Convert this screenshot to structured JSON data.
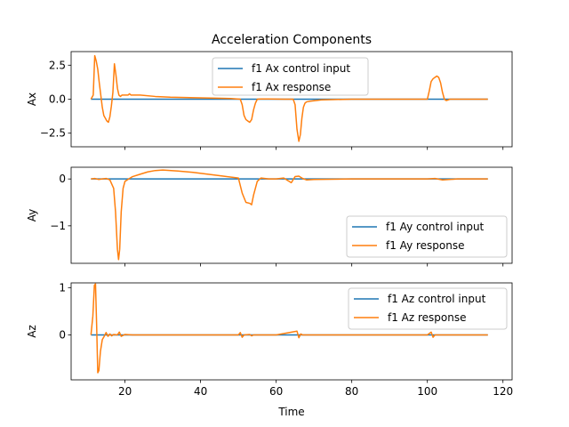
{
  "figure": {
    "title": "Acceleration Components",
    "xlabel": "Time"
  },
  "colors": {
    "control": "#1f77b4",
    "response": "#ff7f0e"
  },
  "chart_data": [
    {
      "type": "line",
      "ylabel": "Ax",
      "xlim": [
        11,
        116
      ],
      "ylim": [
        -3.5,
        3.5
      ],
      "yticks": [
        2.5,
        0.0,
        -2.5
      ],
      "ytick_labels": [
        "2.5",
        "0.0",
        "−2.5"
      ],
      "xticks": [
        20,
        40,
        60,
        80,
        100,
        120
      ],
      "legend": "top-center",
      "series": [
        {
          "name": "f1 Ax control input",
          "role": "control",
          "x": [
            11,
            116
          ],
          "y": [
            0,
            0
          ]
        },
        {
          "name": "f1 Ax response",
          "role": "response",
          "x": [
            11,
            11.6,
            12.0,
            12.4,
            12.8,
            13.2,
            13.6,
            14.0,
            14.4,
            14.8,
            15.2,
            15.6,
            16.0,
            16.4,
            16.8,
            17.2,
            17.6,
            18.0,
            18.4,
            18.8,
            19.2,
            19.6,
            20.0,
            20.4,
            20.8,
            21.2,
            21.6,
            22.4,
            24,
            28,
            32,
            40,
            48,
            50.5,
            51.0,
            51.5,
            52.0,
            52.5,
            53.0,
            53.5,
            54.0,
            54.5,
            55.0,
            56,
            58,
            62,
            64.5,
            65.0,
            65.5,
            66.0,
            66.4,
            66.8,
            67.2,
            67.6,
            68.0,
            69,
            72,
            80,
            100,
            100.5,
            101.0,
            101.5,
            102.0,
            102.5,
            103.0,
            103.5,
            104.0,
            104.5,
            105.0,
            106,
            108,
            116
          ],
          "y": [
            0,
            0.3,
            3.2,
            2.8,
            2.2,
            1.2,
            0.3,
            -0.6,
            -1.2,
            -1.4,
            -1.6,
            -1.7,
            -1.3,
            -0.5,
            0.5,
            2.6,
            1.8,
            0.8,
            0.3,
            0.2,
            0.3,
            0.3,
            0.3,
            0.3,
            0.3,
            0.4,
            0.3,
            0.3,
            0.3,
            0.2,
            0.15,
            0.1,
            0.05,
            0,
            -0.4,
            -1.2,
            -1.5,
            -1.6,
            -1.7,
            -1.5,
            -0.8,
            -0.3,
            0,
            0.02,
            0.02,
            0,
            0,
            -0.4,
            -2.2,
            -3.1,
            -2.6,
            -1.4,
            -0.6,
            -0.3,
            -0.2,
            -0.15,
            -0.05,
            0,
            0,
            0.6,
            1.3,
            1.5,
            1.6,
            1.7,
            1.6,
            1.2,
            0.5,
            0,
            -0.1,
            0,
            0,
            0
          ]
        }
      ]
    },
    {
      "type": "line",
      "ylabel": "Ay",
      "xlim": [
        11,
        116
      ],
      "ylim": [
        -1.8,
        0.25
      ],
      "yticks": [
        0,
        -1
      ],
      "ytick_labels": [
        "0",
        "−1"
      ],
      "xticks": [
        20,
        40,
        60,
        80,
        100,
        120
      ],
      "legend": "bottom-right",
      "series": [
        {
          "name": "f1 Ay control input",
          "role": "control",
          "x": [
            11,
            116
          ],
          "y": [
            0,
            0
          ]
        },
        {
          "name": "f1 Ay response",
          "role": "response",
          "x": [
            11,
            12,
            13,
            14,
            15,
            16,
            17,
            17.5,
            18.0,
            18.3,
            18.6,
            19.0,
            19.5,
            20,
            21,
            22,
            24,
            26,
            28,
            30,
            34,
            38,
            42,
            46,
            50,
            51,
            52,
            53,
            53.5,
            54,
            55,
            56,
            58,
            60,
            62,
            64,
            65,
            66,
            67,
            68,
            70,
            80,
            90,
            100,
            102,
            104,
            108,
            116
          ],
          "y": [
            0,
            0.01,
            -0.01,
            0,
            0.01,
            -0.02,
            -0.2,
            -0.7,
            -1.5,
            -1.72,
            -1.5,
            -0.7,
            -0.2,
            -0.05,
            0,
            0.05,
            0.1,
            0.15,
            0.18,
            0.19,
            0.17,
            0.14,
            0.1,
            0.06,
            0.02,
            -0.3,
            -0.5,
            -0.52,
            -0.55,
            -0.35,
            -0.05,
            0.02,
            0,
            0,
            0.02,
            -0.08,
            0.05,
            0.06,
            0.01,
            -0.02,
            -0.01,
            0,
            0,
            0,
            0.01,
            -0.02,
            0,
            0
          ]
        }
      ]
    },
    {
      "type": "line",
      "ylabel": "Az",
      "xlim": [
        11,
        116
      ],
      "ylim": [
        -0.95,
        1.1
      ],
      "yticks": [
        1,
        0
      ],
      "ytick_labels": [
        "1",
        "0"
      ],
      "xticks": [
        20,
        40,
        60,
        80,
        100,
        120
      ],
      "xtick_labels": [
        "20",
        "40",
        "60",
        "80",
        "100",
        "120"
      ],
      "legend": "top-right",
      "series": [
        {
          "name": "f1 Az control input",
          "role": "control",
          "x": [
            11,
            116
          ],
          "y": [
            0,
            0
          ]
        },
        {
          "name": "f1 Az response",
          "role": "response",
          "x": [
            11,
            11.5,
            11.9,
            12.2,
            12.5,
            12.8,
            13.1,
            13.5,
            14.0,
            14.5,
            15.0,
            15.5,
            16.0,
            16.5,
            17.0,
            18,
            18.5,
            19,
            20,
            22,
            30,
            40,
            50,
            50.5,
            51,
            51.5,
            53,
            53.5,
            54,
            60,
            65.5,
            66,
            66.5,
            67,
            80,
            100,
            101,
            101.5,
            102,
            116
          ],
          "y": [
            0,
            0.4,
            1.05,
            1.08,
            0.2,
            -0.8,
            -0.75,
            -0.35,
            -0.1,
            -0.03,
            0.05,
            -0.03,
            0.02,
            -0.02,
            0.01,
            0,
            0.06,
            -0.03,
            0.01,
            0,
            0,
            0,
            0,
            0.05,
            -0.05,
            0,
            0.01,
            -0.02,
            0,
            0,
            0.08,
            -0.06,
            0.02,
            0,
            0,
            0,
            0.06,
            -0.05,
            0,
            0
          ]
        }
      ]
    }
  ]
}
